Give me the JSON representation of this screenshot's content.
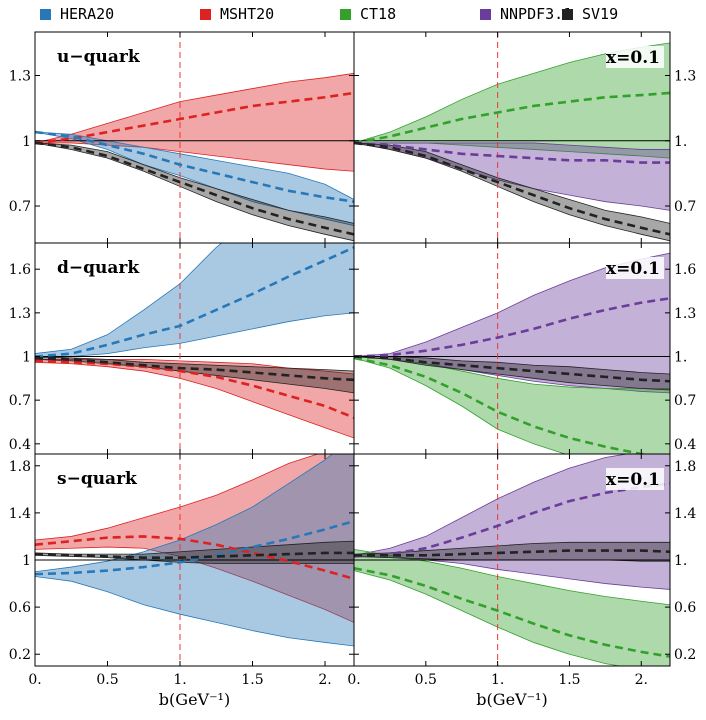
{
  "chart_data": {
    "type": "area",
    "xlabel": "b(GeV⁻¹)",
    "xlim": [
      0,
      2.2
    ],
    "x_ticks": [
      "0.",
      "0.5",
      "1.",
      "1.5",
      "2."
    ],
    "vline_x": 1.0,
    "legend": [
      {
        "name": "HERA20",
        "color": "#2878b8"
      },
      {
        "name": "MSHT20",
        "color": "#dd2222"
      },
      {
        "name": "CT18",
        "color": "#33a02c"
      },
      {
        "name": "NNPDF3.1",
        "color": "#6a3d9a"
      },
      {
        "name": "SV19",
        "color": "#222222"
      }
    ],
    "x": [
      0,
      0.25,
      0.5,
      0.75,
      1.0,
      1.25,
      1.5,
      1.75,
      2.0,
      2.2
    ],
    "rows": [
      {
        "label": "u−quark",
        "ylim": [
          0.53,
          1.5
        ],
        "yticks": [
          0.7,
          1.0,
          1.3
        ],
        "ytick_labels": [
          "0.7",
          "1",
          "1.3"
        ],
        "ytick_labels_right": [
          "0.7",
          "1.",
          "1.3"
        ],
        "left_series": [
          {
            "name": "MSHT20",
            "central": [
              0.99,
              1.01,
              1.04,
              1.07,
              1.1,
              1.13,
              1.16,
              1.18,
              1.2,
              1.22
            ],
            "lower": [
              0.99,
              0.99,
              0.98,
              0.97,
              0.95,
              0.93,
              0.91,
              0.89,
              0.87,
              0.86
            ],
            "upper": [
              0.99,
              1.03,
              1.08,
              1.13,
              1.18,
              1.21,
              1.24,
              1.27,
              1.29,
              1.31
            ]
          },
          {
            "name": "HERA20",
            "central": [
              1.04,
              1.02,
              0.98,
              0.94,
              0.89,
              0.85,
              0.81,
              0.77,
              0.74,
              0.72
            ],
            "lower": [
              1.04,
              1.01,
              0.96,
              0.89,
              0.84,
              0.78,
              0.72,
              0.68,
              0.64,
              0.61
            ],
            "upper": [
              1.04,
              1.03,
              1.0,
              0.97,
              0.94,
              0.91,
              0.88,
              0.85,
              0.8,
              0.73
            ]
          },
          {
            "name": "SV19",
            "central": [
              0.99,
              0.97,
              0.93,
              0.87,
              0.81,
              0.75,
              0.69,
              0.64,
              0.6,
              0.57
            ],
            "lower": [
              0.99,
              0.96,
              0.92,
              0.86,
              0.79,
              0.72,
              0.66,
              0.61,
              0.57,
              0.54
            ],
            "upper": [
              0.99,
              0.98,
              0.95,
              0.89,
              0.83,
              0.78,
              0.73,
              0.68,
              0.65,
              0.62
            ]
          }
        ],
        "right_series": [
          {
            "name": "CT18",
            "central": [
              0.99,
              1.02,
              1.06,
              1.1,
              1.13,
              1.16,
              1.18,
              1.2,
              1.21,
              1.22
            ],
            "lower": [
              0.99,
              0.99,
              0.99,
              0.98,
              0.97,
              0.96,
              0.95,
              0.94,
              0.93,
              0.92
            ],
            "upper": [
              0.99,
              1.04,
              1.11,
              1.19,
              1.26,
              1.31,
              1.36,
              1.4,
              1.43,
              1.45
            ]
          },
          {
            "name": "NNPDF3.1",
            "central": [
              0.99,
              0.98,
              0.96,
              0.94,
              0.93,
              0.92,
              0.91,
              0.91,
              0.9,
              0.9
            ],
            "lower": [
              0.99,
              0.96,
              0.92,
              0.87,
              0.82,
              0.78,
              0.75,
              0.72,
              0.7,
              0.68
            ],
            "upper": [
              0.99,
              0.99,
              0.99,
              0.99,
              0.99,
              0.99,
              0.98,
              0.97,
              0.96,
              0.96
            ]
          },
          {
            "name": "SV19",
            "central": [
              0.99,
              0.97,
              0.93,
              0.87,
              0.81,
              0.75,
              0.69,
              0.64,
              0.6,
              0.57
            ],
            "lower": [
              0.99,
              0.96,
              0.92,
              0.86,
              0.79,
              0.72,
              0.66,
              0.61,
              0.57,
              0.54
            ],
            "upper": [
              0.99,
              0.98,
              0.95,
              0.89,
              0.83,
              0.78,
              0.73,
              0.68,
              0.65,
              0.62
            ]
          }
        ],
        "right_annotation": "x=0.1"
      },
      {
        "label": "d−quark",
        "ylim": [
          0.33,
          1.78
        ],
        "yticks": [
          0.4,
          0.7,
          1.0,
          1.3,
          1.6
        ],
        "ytick_labels": [
          "0.4",
          "0.7",
          "1",
          "1.3",
          "1.6"
        ],
        "ytick_labels_right": [
          "0.4",
          "0.7",
          "1.",
          "1.3",
          "1.6"
        ],
        "left_series": [
          {
            "name": "HERA20",
            "central": [
              1.0,
              1.02,
              1.08,
              1.15,
              1.21,
              1.32,
              1.43,
              1.55,
              1.66,
              1.75
            ],
            "lower": [
              0.99,
              1.0,
              1.02,
              1.06,
              1.09,
              1.14,
              1.19,
              1.24,
              1.28,
              1.3
            ],
            "upper": [
              1.02,
              1.05,
              1.15,
              1.32,
              1.5,
              1.75,
              1.95,
              2.1,
              2.2,
              2.3
            ]
          },
          {
            "name": "MSHT20",
            "central": [
              0.97,
              0.96,
              0.95,
              0.93,
              0.9,
              0.86,
              0.8,
              0.73,
              0.66,
              0.58
            ],
            "lower": [
              0.96,
              0.95,
              0.93,
              0.9,
              0.85,
              0.78,
              0.69,
              0.6,
              0.51,
              0.44
            ],
            "upper": [
              0.98,
              0.98,
              0.98,
              0.98,
              0.97,
              0.96,
              0.95,
              0.92,
              0.9,
              0.88
            ]
          },
          {
            "name": "SV19",
            "central": [
              0.99,
              0.98,
              0.96,
              0.94,
              0.92,
              0.91,
              0.89,
              0.87,
              0.85,
              0.84
            ],
            "lower": [
              0.98,
              0.97,
              0.95,
              0.93,
              0.9,
              0.87,
              0.84,
              0.81,
              0.78,
              0.75
            ],
            "upper": [
              1.0,
              0.99,
              0.98,
              0.96,
              0.95,
              0.94,
              0.93,
              0.92,
              0.91,
              0.9
            ]
          }
        ],
        "right_series": [
          {
            "name": "NNPDF3.1",
            "central": [
              1.0,
              1.01,
              1.04,
              1.08,
              1.13,
              1.19,
              1.26,
              1.32,
              1.37,
              1.4
            ],
            "lower": [
              1.0,
              0.98,
              0.95,
              0.91,
              0.87,
              0.83,
              0.8,
              0.78,
              0.76,
              0.75
            ],
            "upper": [
              1.0,
              1.02,
              1.1,
              1.2,
              1.3,
              1.42,
              1.52,
              1.61,
              1.67,
              1.71
            ]
          },
          {
            "name": "CT18",
            "central": [
              0.99,
              0.94,
              0.86,
              0.75,
              0.62,
              0.52,
              0.44,
              0.38,
              0.33,
              0.29
            ],
            "lower": [
              0.99,
              0.92,
              0.8,
              0.66,
              0.5,
              0.4,
              0.32,
              0.26,
              0.22,
              0.19
            ],
            "upper": [
              1.0,
              0.98,
              0.95,
              0.9,
              0.85,
              0.81,
              0.79,
              0.78,
              0.78,
              0.78
            ]
          },
          {
            "name": "SV19",
            "central": [
              1.0,
              0.99,
              0.96,
              0.94,
              0.92,
              0.9,
              0.88,
              0.86,
              0.84,
              0.83
            ],
            "lower": [
              1.0,
              0.98,
              0.94,
              0.91,
              0.88,
              0.85,
              0.82,
              0.8,
              0.78,
              0.77
            ],
            "upper": [
              1.0,
              1.0,
              0.99,
              0.97,
              0.96,
              0.94,
              0.93,
              0.91,
              0.89,
              0.88
            ]
          }
        ],
        "right_annotation": "x=0.1"
      },
      {
        "label": "s−quark",
        "ylim": [
          0.1,
          1.9
        ],
        "yticks": [
          0.2,
          0.6,
          1.0,
          1.4,
          1.8
        ],
        "ytick_labels": [
          "0.2",
          "0.6",
          "1",
          "1.4",
          "1.8"
        ],
        "ytick_labels_right": [
          "0.2",
          "0.6",
          "1.",
          "1.4",
          "1.8"
        ],
        "left_series": [
          {
            "name": "MSHT20",
            "central": [
              1.13,
              1.16,
              1.19,
              1.2,
              1.18,
              1.13,
              1.06,
              0.99,
              0.91,
              0.84
            ],
            "lower": [
              1.09,
              1.1,
              1.11,
              1.1,
              1.03,
              0.93,
              0.82,
              0.7,
              0.58,
              0.47
            ],
            "upper": [
              1.17,
              1.2,
              1.27,
              1.36,
              1.45,
              1.55,
              1.68,
              1.82,
              1.92,
              2.0
            ]
          },
          {
            "name": "HERA20",
            "central": [
              0.88,
              0.89,
              0.91,
              0.94,
              0.98,
              1.04,
              1.11,
              1.18,
              1.26,
              1.33
            ],
            "lower": [
              0.86,
              0.82,
              0.73,
              0.62,
              0.54,
              0.47,
              0.4,
              0.34,
              0.3,
              0.27
            ],
            "upper": [
              0.9,
              0.94,
              0.99,
              1.07,
              1.17,
              1.3,
              1.45,
              1.65,
              1.85,
              2.05
            ]
          },
          {
            "name": "SV19",
            "central": [
              1.05,
              1.04,
              1.03,
              1.02,
              1.02,
              1.03,
              1.04,
              1.05,
              1.06,
              1.06
            ],
            "lower": [
              1.04,
              1.03,
              1.02,
              1.0,
              0.98,
              0.97,
              0.97,
              0.97,
              0.97,
              0.97
            ],
            "upper": [
              1.06,
              1.05,
              1.05,
              1.05,
              1.07,
              1.09,
              1.11,
              1.13,
              1.15,
              1.16
            ]
          }
        ],
        "right_series": [
          {
            "name": "NNPDF3.1",
            "central": [
              1.03,
              1.05,
              1.1,
              1.19,
              1.29,
              1.4,
              1.5,
              1.57,
              1.62,
              1.65
            ],
            "lower": [
              1.03,
              1.02,
              1.0,
              0.97,
              0.92,
              0.88,
              0.84,
              0.8,
              0.77,
              0.75
            ],
            "upper": [
              1.04,
              1.1,
              1.2,
              1.36,
              1.52,
              1.66,
              1.78,
              1.87,
              1.92,
              1.95
            ]
          },
          {
            "name": "CT18",
            "central": [
              0.93,
              0.87,
              0.78,
              0.67,
              0.57,
              0.46,
              0.36,
              0.28,
              0.22,
              0.18
            ],
            "lower": [
              0.91,
              0.83,
              0.71,
              0.57,
              0.43,
              0.3,
              0.2,
              0.12,
              0.07,
              0.05
            ],
            "upper": [
              1.09,
              1.04,
              0.99,
              0.93,
              0.86,
              0.8,
              0.74,
              0.69,
              0.65,
              0.62
            ]
          },
          {
            "name": "SV19",
            "central": [
              1.04,
              1.04,
              1.04,
              1.05,
              1.06,
              1.07,
              1.08,
              1.08,
              1.08,
              1.07
            ],
            "lower": [
              1.03,
              1.02,
              1.01,
              1.0,
              1.0,
              1.0,
              1.0,
              1.0,
              0.99,
              0.99
            ],
            "upper": [
              1.05,
              1.06,
              1.08,
              1.1,
              1.12,
              1.14,
              1.15,
              1.15,
              1.15,
              1.15
            ]
          }
        ],
        "right_annotation": "x=0.1"
      }
    ]
  }
}
